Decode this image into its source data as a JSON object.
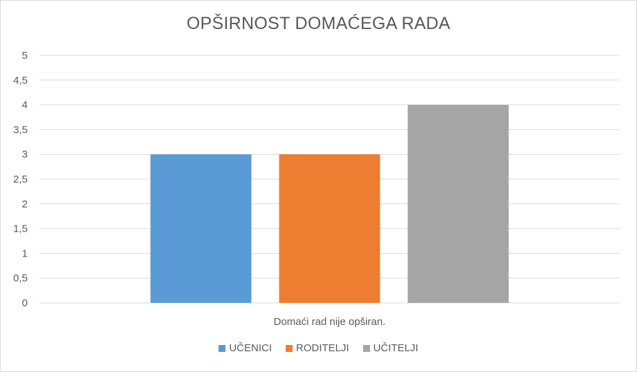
{
  "chart_data": {
    "type": "bar",
    "title": "OPŠIRNOST DOMAĆEGA RADA",
    "categories": [
      "Domaći rad nije opširan."
    ],
    "series": [
      {
        "name": "UČENICI",
        "values": [
          3
        ],
        "color": "#5b9bd5"
      },
      {
        "name": "RODITELJI",
        "values": [
          3
        ],
        "color": "#ed7d31"
      },
      {
        "name": "UČITELJI",
        "values": [
          4
        ],
        "color": "#a5a5a5"
      }
    ],
    "ylim": [
      0,
      5
    ],
    "yticks": [
      "0",
      "0,5",
      "1",
      "1,5",
      "2",
      "2,5",
      "3",
      "3,5",
      "4",
      "4,5",
      "5"
    ],
    "grid": true,
    "legend": "bottom"
  }
}
